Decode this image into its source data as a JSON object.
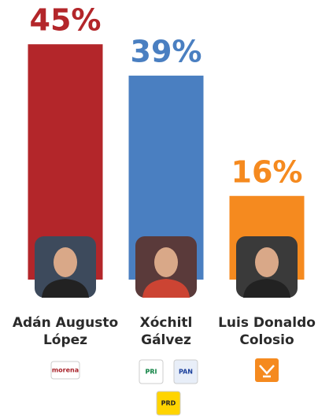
{
  "chart_data": {
    "type": "bar",
    "categories": [
      [
        "Adán Augusto",
        "López"
      ],
      [
        "Xóchitl",
        "Gálvez"
      ],
      [
        "Luis Donaldo",
        "Colosio"
      ]
    ],
    "values": [
      45,
      39,
      16
    ],
    "value_labels": [
      "45%",
      "39%",
      "16%"
    ],
    "colors": [
      "#b3262a",
      "#4a7fc1",
      "#f58a1f"
    ],
    "parties": [
      [
        "morena"
      ],
      [
        "PRI",
        "PAN",
        "PRD"
      ],
      []
    ]
  }
}
